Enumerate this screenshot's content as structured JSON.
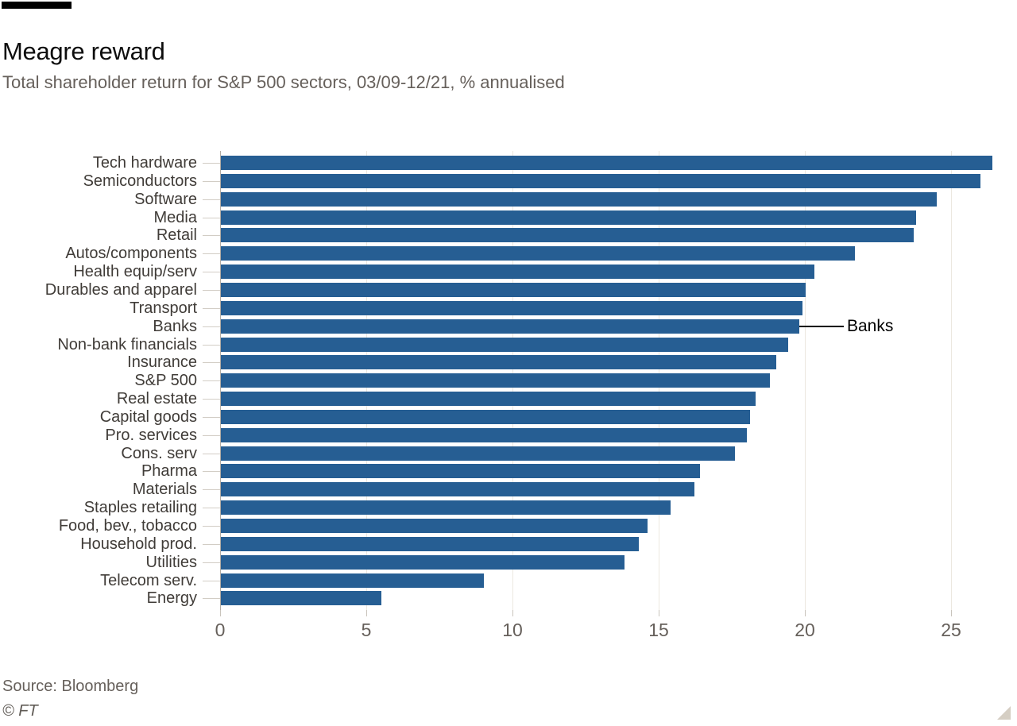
{
  "header": {
    "title": "Meagre reward",
    "subtitle": "Total shareholder return for S&P 500 sectors, 03/09-12/21, % annualised"
  },
  "chart_data": {
    "type": "bar",
    "orientation": "horizontal",
    "title": "Meagre reward",
    "subtitle": "Total shareholder return for S&P 500 sectors, 03/09-12/21, % annualised",
    "xlabel": "",
    "ylabel": "",
    "xlim": [
      0,
      27
    ],
    "x_ticks": [
      0,
      5,
      10,
      15,
      20,
      25
    ],
    "grid": "vertical",
    "bar_color": "#265e93",
    "categories": [
      "Tech hardware",
      "Semiconductors",
      "Software",
      "Media",
      "Retail",
      "Autos/components",
      "Health equip/serv",
      "Durables and apparel",
      "Transport",
      "Banks",
      "Non-bank financials",
      "Insurance",
      "S&P 500",
      "Real estate",
      "Capital goods",
      "Pro. services",
      "Cons. serv",
      "Pharma",
      "Materials",
      "Staples retailing",
      "Food, bev., tobacco",
      "Household prod.",
      "Utilities",
      "Telecom serv.",
      "Energy"
    ],
    "values": [
      26.4,
      26.0,
      24.5,
      23.8,
      23.7,
      21.7,
      20.3,
      20.0,
      19.9,
      19.8,
      19.4,
      19.0,
      18.8,
      18.3,
      18.1,
      18.0,
      17.6,
      16.4,
      16.2,
      15.4,
      14.6,
      14.3,
      13.8,
      9.0,
      5.5
    ],
    "annotation": {
      "label": "Banks",
      "category": "Banks"
    }
  },
  "footer": {
    "source": "Source: Bloomberg",
    "copyright": "© FT"
  }
}
